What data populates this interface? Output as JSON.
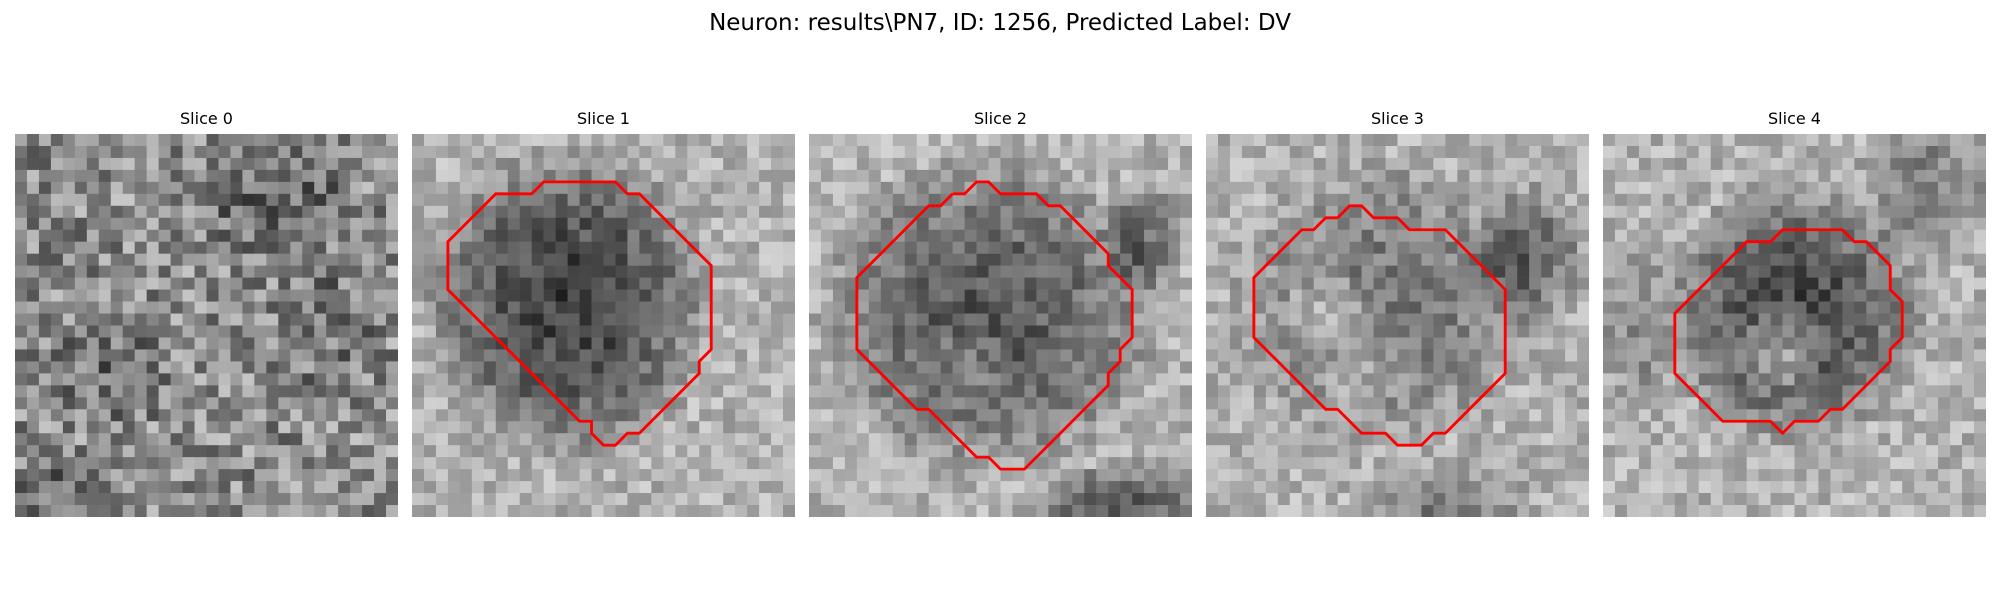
{
  "figure": {
    "title": "Neuron: results\\PN7, ID: 1256, Predicted Label: DV"
  },
  "panels": [
    {
      "title": "Slice 0",
      "has_contour": false
    },
    {
      "title": "Slice 1",
      "has_contour": true
    },
    {
      "title": "Slice 2",
      "has_contour": true
    },
    {
      "title": "Slice 3",
      "has_contour": true
    },
    {
      "title": "Slice 4",
      "has_contour": true
    }
  ],
  "colors": {
    "contour": "#ff0000",
    "background": "#ffffff"
  }
}
